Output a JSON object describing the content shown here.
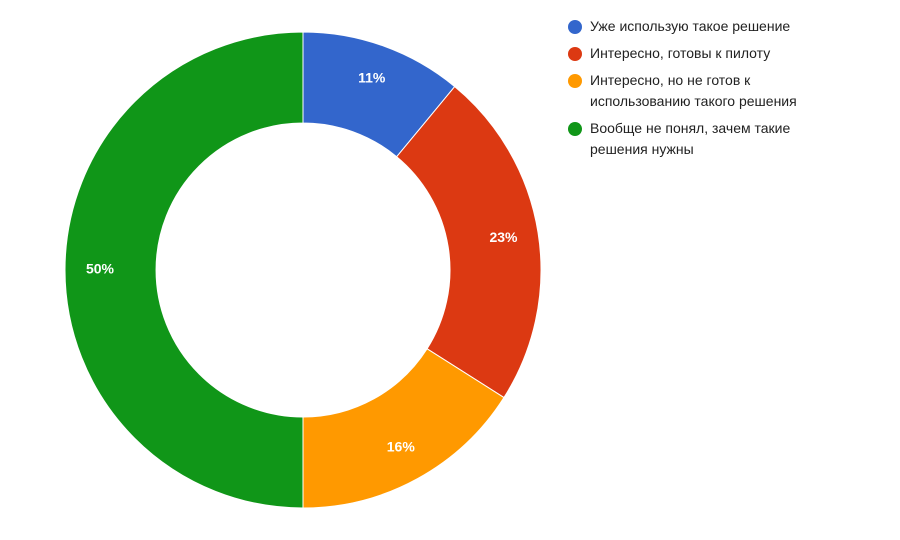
{
  "chart_data": {
    "type": "donut",
    "categories": [
      "Уже использую такое решение",
      "Интересно, готовы к пилоту",
      "Интересно, но не готов к использованию такого решения",
      "Вообще не понял, зачем такие решения нужны"
    ],
    "values": [
      11,
      23,
      16,
      50
    ],
    "value_labels": [
      "11%",
      "23%",
      "16%",
      "50%"
    ],
    "colors": [
      "#3366cc",
      "#dc3912",
      "#ff9900",
      "#109618"
    ],
    "legend": "right"
  }
}
